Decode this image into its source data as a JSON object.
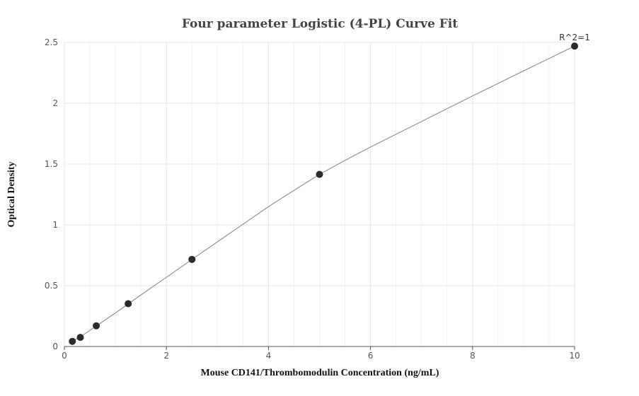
{
  "chart_data": {
    "type": "scatter",
    "title": "Four parameter Logistic (4-PL) Curve Fit",
    "xlabel": "Mouse CD141/Thrombomodulin Concentration (ng/mL)",
    "ylabel": "Optical Density",
    "xlim": [
      0,
      10
    ],
    "ylim": [
      0,
      2.5
    ],
    "x_ticks": [
      0,
      2,
      4,
      6,
      8,
      10
    ],
    "y_ticks": [
      0,
      0.5,
      1,
      1.5,
      2,
      2.5
    ],
    "x_tick_labels": [
      "0",
      "2",
      "4",
      "6",
      "8",
      "10"
    ],
    "y_tick_labels": [
      "0",
      "0.5",
      "1",
      "1.5",
      "2",
      "2.5"
    ],
    "grid": true,
    "annotation": "R^2=1",
    "series": [
      {
        "values": [
          {
            "x": 0.156,
            "y": 0.042
          },
          {
            "x": 0.3125,
            "y": 0.075
          },
          {
            "x": 0.625,
            "y": 0.17
          },
          {
            "x": 1.25,
            "y": 0.352
          },
          {
            "x": 2.5,
            "y": 0.716
          },
          {
            "x": 5,
            "y": 1.415
          },
          {
            "x": 10,
            "y": 2.47
          }
        ]
      }
    ],
    "fit_curve": {
      "x": [
        0.1,
        0.156,
        0.3125,
        0.625,
        1.0,
        1.25,
        1.5,
        2.0,
        2.5,
        3.0,
        3.5,
        4.0,
        4.5,
        5.0,
        5.5,
        6.0,
        6.5,
        7.0,
        7.5,
        8.0,
        8.5,
        9.0,
        9.5,
        10.0
      ],
      "y": [
        0.028,
        0.042,
        0.08,
        0.168,
        0.276,
        0.349,
        0.424,
        0.569,
        0.716,
        0.861,
        1.005,
        1.15,
        1.284,
        1.415,
        1.53,
        1.64,
        1.745,
        1.85,
        1.955,
        2.06,
        2.163,
        2.266,
        2.368,
        2.47
      ]
    },
    "colors": {
      "points": "#2b2b2b",
      "fit_line": "#808080",
      "grid": "#e3e3ec",
      "axis": "#555555"
    }
  }
}
